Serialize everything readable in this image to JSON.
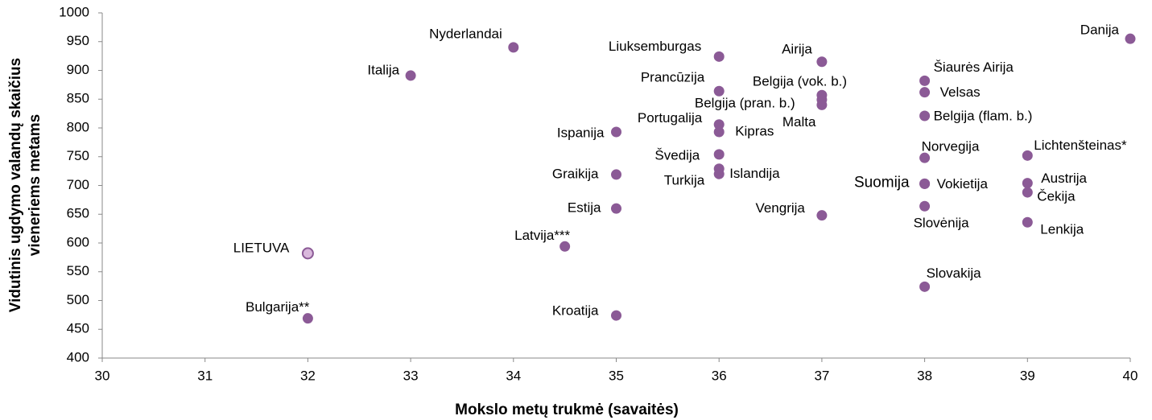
{
  "chart_data": {
    "type": "scatter",
    "xlabel": "Mokslo metų trukmė (savaitės)",
    "ylabel": [
      "Vidutinis ugdymo valandų skaičius",
      "vieneriems metams"
    ],
    "xlim": [
      30,
      40
    ],
    "xticks": [
      30,
      31,
      32,
      33,
      34,
      35,
      36,
      37,
      38,
      39,
      40
    ],
    "ylim": [
      400,
      1000
    ],
    "yticks": [
      400,
      450,
      500,
      550,
      600,
      650,
      700,
      750,
      800,
      850,
      900,
      950,
      1000
    ],
    "color": "#8b5a96",
    "highlight": {
      "label": "LIETUVA",
      "color": "#d9b8dc"
    },
    "labels": [
      "Danija",
      "Nyderlandai",
      "Italija",
      "Liuksemburgas",
      "Airija",
      "Prancūzija",
      "Belgija (vok. b.)",
      "Belgija (pran. b.)",
      "Malta",
      "Šiaurės Airija",
      "Velsas",
      "Belgija (flam. b.)",
      "Portugalija",
      "Kipras",
      "Ispanija",
      "Norvegija",
      "Lichtenšteinas*",
      "Švedija",
      "Islandija",
      "Turkija",
      "Graikija",
      "Suomija",
      "Vokietija",
      "Austrija",
      "Čekija",
      "Slovėnija",
      "Estija",
      "Vengrija",
      "Lenkija",
      "Latvija***",
      "LIETUVA",
      "Slovakija",
      "Kroatija",
      "Bulgarija**"
    ],
    "x": [
      40,
      34,
      33,
      36,
      37,
      36,
      37,
      37,
      37,
      38,
      38,
      38,
      36,
      36,
      35,
      38,
      39,
      36,
      36,
      36,
      35,
      38,
      38,
      39,
      39,
      38,
      35,
      37,
      39,
      34.5,
      32,
      38,
      35,
      32
    ],
    "values": [
      955,
      940,
      891,
      924,
      915,
      864,
      857,
      849,
      840,
      882,
      862,
      821,
      806,
      793,
      793,
      748,
      752,
      754,
      729,
      720,
      719,
      703,
      703,
      704,
      688,
      664,
      660,
      648,
      636,
      594,
      582,
      524,
      474,
      469
    ]
  }
}
